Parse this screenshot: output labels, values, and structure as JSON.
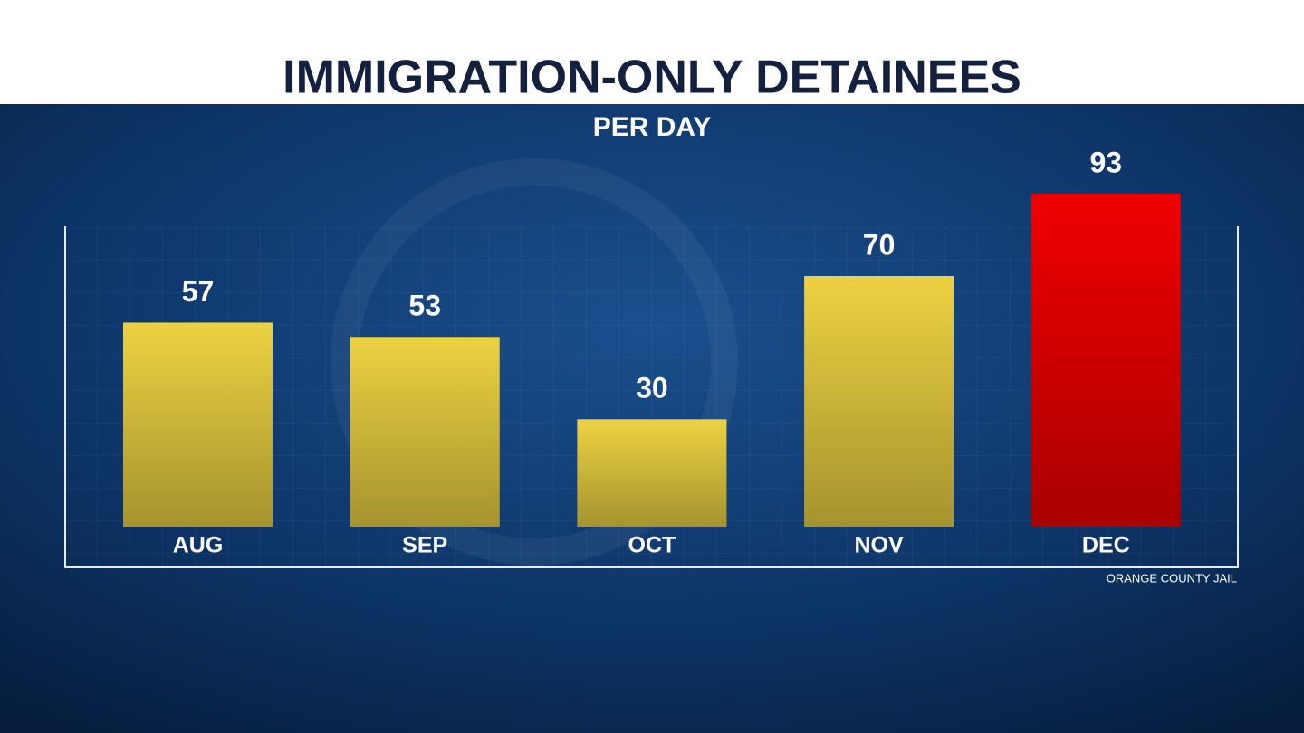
{
  "chart_data": {
    "type": "bar",
    "title": "IMMIGRATION-ONLY DETAINEES",
    "subtitle": "PER DAY",
    "categories": [
      "AUG",
      "SEP",
      "OCT",
      "NOV",
      "DEC"
    ],
    "values": [
      57,
      53,
      30,
      70,
      93
    ],
    "colors": [
      "#ecd242",
      "#ecd242",
      "#ecd242",
      "#ecd242",
      "#f00000"
    ],
    "source": "ORANGE COUNTY JAIL"
  }
}
